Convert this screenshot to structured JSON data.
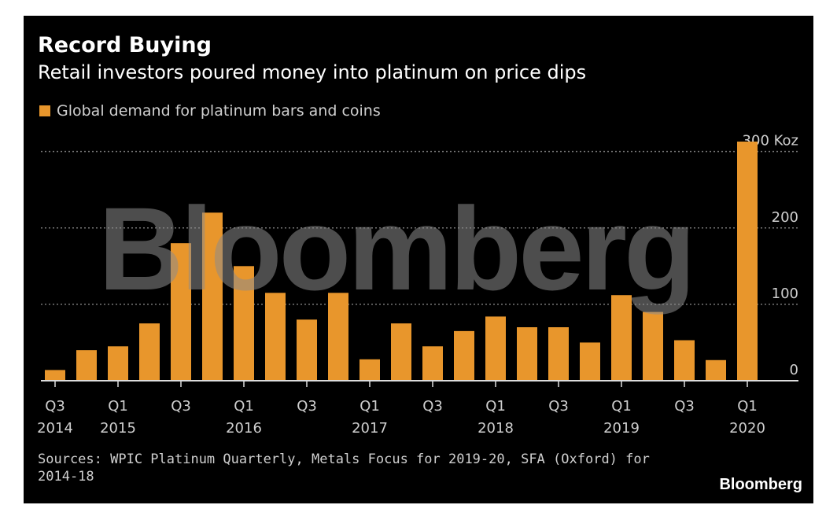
{
  "title": "Record Buying",
  "subtitle": "Retail investors poured money into platinum on price dips",
  "legend_label": "Global demand for platinum bars and coins",
  "source": "Sources: WPIC Platinum Quarterly, Metals Focus for 2019-20, SFA (Oxford) for 2014-18",
  "brand": "Bloomberg",
  "watermark": "Bloomberg",
  "colors": {
    "bar": "#e8962c",
    "background": "#000000",
    "text": "#cfcfcf"
  },
  "chart_data": {
    "type": "bar",
    "categories": [
      "Q3 2014",
      "Q4 2014",
      "Q1 2015",
      "Q2 2015",
      "Q3 2015",
      "Q4 2015",
      "Q1 2016",
      "Q2 2016",
      "Q3 2016",
      "Q4 2016",
      "Q1 2017",
      "Q2 2017",
      "Q3 2017",
      "Q4 2017",
      "Q1 2018",
      "Q2 2018",
      "Q3 2018",
      "Q4 2018",
      "Q1 2019",
      "Q2 2019",
      "Q3 2019",
      "Q4 2019",
      "Q1 2020"
    ],
    "values": [
      14,
      40,
      45,
      75,
      180,
      220,
      150,
      115,
      80,
      115,
      28,
      75,
      45,
      65,
      84,
      70,
      70,
      50,
      112,
      90,
      53,
      27,
      313
    ],
    "ylim": [
      0,
      313
    ],
    "yticks": [
      0,
      100,
      200,
      300
    ],
    "ytick_labels": [
      "0",
      "100",
      "200",
      "300 Koz"
    ],
    "xtick_labels": [
      {
        "index": 0,
        "quarter": "Q3",
        "year": "2014"
      },
      {
        "index": 2,
        "quarter": "Q1",
        "year": "2015"
      },
      {
        "index": 4,
        "quarter": "Q3",
        "year": ""
      },
      {
        "index": 6,
        "quarter": "Q1",
        "year": "2016"
      },
      {
        "index": 8,
        "quarter": "Q3",
        "year": ""
      },
      {
        "index": 10,
        "quarter": "Q1",
        "year": "2017"
      },
      {
        "index": 12,
        "quarter": "Q3",
        "year": ""
      },
      {
        "index": 14,
        "quarter": "Q1",
        "year": "2018"
      },
      {
        "index": 16,
        "quarter": "Q3",
        "year": ""
      },
      {
        "index": 18,
        "quarter": "Q1",
        "year": "2019"
      },
      {
        "index": 20,
        "quarter": "Q3",
        "year": ""
      },
      {
        "index": 22,
        "quarter": "Q1",
        "year": "2020"
      }
    ],
    "grid": true,
    "legend_position": "top-left"
  }
}
